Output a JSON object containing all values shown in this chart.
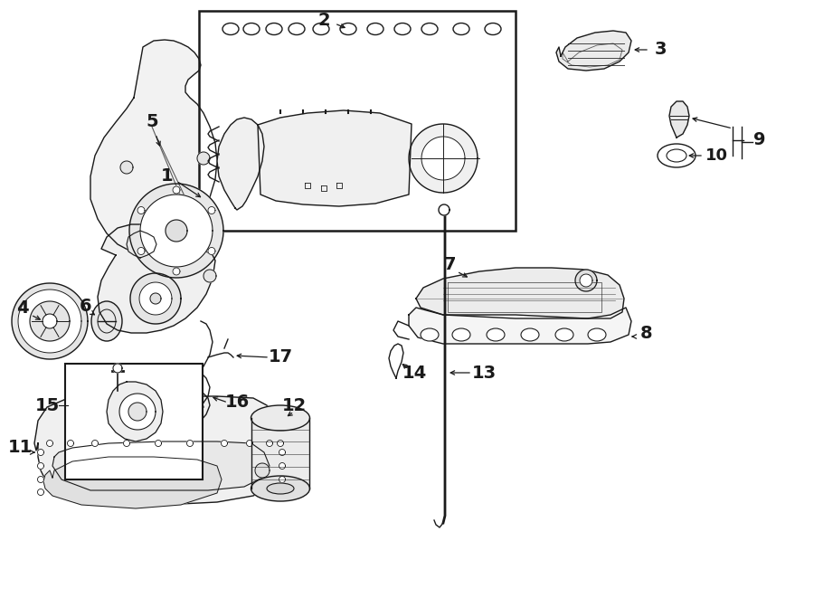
{
  "bg_color": "#ffffff",
  "line_color": "#1a1a1a",
  "fig_w": 9.0,
  "fig_h": 6.61,
  "dpi": 100,
  "lw": 1.0
}
